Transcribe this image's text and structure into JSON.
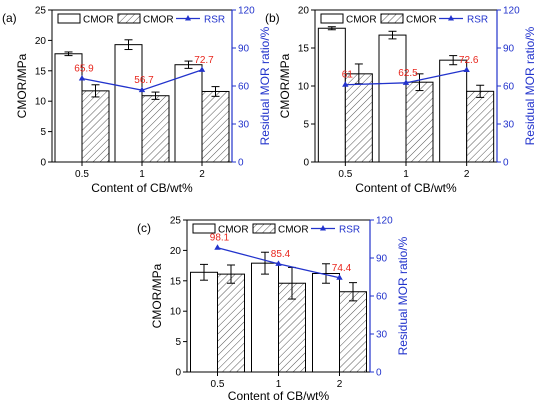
{
  "chart_data": [
    {
      "type": "bar",
      "panel": "(a)",
      "categories": [
        "0.5",
        "1",
        "2"
      ],
      "xlabel": "Content of CB/wt%",
      "ylabel": "CMOR/MPa",
      "ylabel_right": "Residual MOR ratio/%",
      "ylim": [
        0,
        25
      ],
      "yticks": [
        "0",
        "5",
        "10",
        "15",
        "20",
        "25"
      ],
      "ylim_right": [
        0,
        120
      ],
      "yticks_right": [
        "0",
        "30",
        "60",
        "90",
        "120"
      ],
      "legend": [
        "CMOR",
        "CMOR",
        "RSR"
      ],
      "series": [
        {
          "name": "CMOR",
          "style": "open",
          "values": [
            17.8,
            19.3,
            16.0
          ],
          "errors": [
            0.3,
            0.8,
            0.6
          ]
        },
        {
          "name": "CMOR",
          "style": "hatched",
          "values": [
            11.7,
            10.9,
            11.6
          ],
          "errors": [
            1.0,
            0.6,
            0.8
          ]
        },
        {
          "name": "RSR",
          "type": "line",
          "values": [
            65.9,
            56.7,
            72.7
          ],
          "labels": [
            "65.9",
            "56.7",
            "72.7"
          ]
        }
      ]
    },
    {
      "type": "bar",
      "panel": "(b)",
      "categories": [
        "0.5",
        "1",
        "2"
      ],
      "xlabel": "Content of CB/wt%",
      "ylabel": "CMOR/MPa",
      "ylabel_right": "Residual MOR ratio/%",
      "ylim": [
        0,
        20
      ],
      "yticks": [
        "0",
        "5",
        "10",
        "15",
        "20"
      ],
      "ylim_right": [
        0,
        120
      ],
      "yticks_right": [
        "0",
        "30",
        "60",
        "90",
        "120"
      ],
      "legend": [
        "CMOR",
        "CMOR",
        "RSR"
      ],
      "series": [
        {
          "name": "CMOR",
          "style": "open",
          "values": [
            17.6,
            16.7,
            13.4
          ],
          "errors": [
            0.2,
            0.5,
            0.6
          ]
        },
        {
          "name": "CMOR",
          "style": "hatched",
          "values": [
            11.6,
            10.5,
            9.3
          ],
          "errors": [
            1.3,
            1.1,
            0.8
          ]
        },
        {
          "name": "RSR",
          "type": "line",
          "values": [
            61,
            62.5,
            72.6
          ],
          "labels": [
            "61",
            "62.5",
            "72.6"
          ]
        }
      ]
    },
    {
      "type": "bar",
      "panel": "(c)",
      "categories": [
        "0.5",
        "1",
        "2"
      ],
      "xlabel": "Content of CB/wt%",
      "ylabel": "CMOR/MPa",
      "ylabel_right": "Residual MOR ratio/%",
      "ylim": [
        0,
        25
      ],
      "yticks": [
        "0",
        "5",
        "10",
        "15",
        "20",
        "25"
      ],
      "ylim_right": [
        0,
        120
      ],
      "yticks_right": [
        "0",
        "30",
        "60",
        "90",
        "120"
      ],
      "legend": [
        "CMOR",
        "CMOR",
        "RSR"
      ],
      "series": [
        {
          "name": "CMOR",
          "style": "open",
          "values": [
            16.4,
            17.9,
            16.2
          ],
          "errors": [
            1.3,
            1.8,
            1.6
          ]
        },
        {
          "name": "CMOR",
          "style": "hatched",
          "values": [
            16.1,
            14.6,
            13.2
          ],
          "errors": [
            1.5,
            2.6,
            1.5
          ]
        },
        {
          "name": "RSR",
          "type": "line",
          "values": [
            98.1,
            85.4,
            74.4
          ],
          "labels": [
            "98.1",
            "85.4",
            "74.4"
          ]
        }
      ]
    }
  ],
  "colors": {
    "axis": "#000000",
    "rsr_line": "#2233cc",
    "rsr_label": "#e8261d",
    "bar_fill": "#ffffff"
  }
}
